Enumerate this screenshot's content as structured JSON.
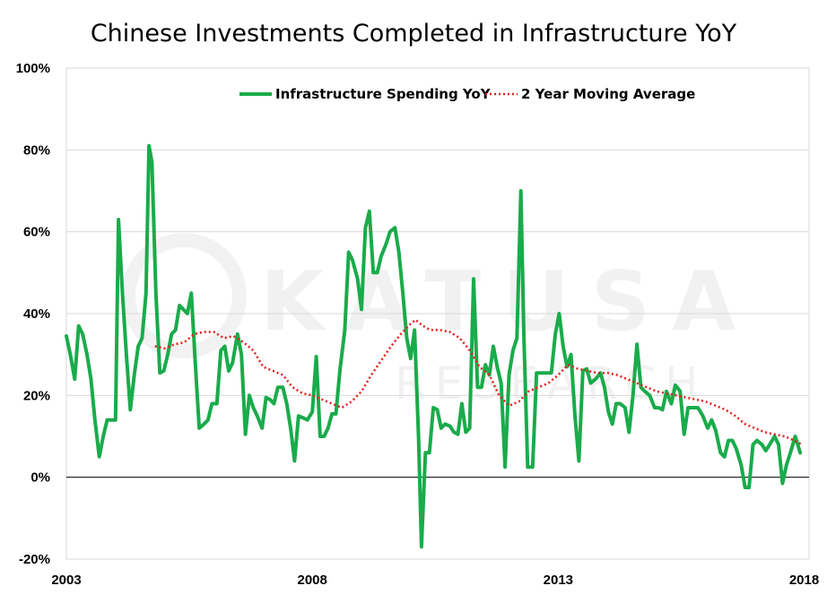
{
  "chart_data": {
    "type": "line",
    "title": "Chinese Investments Completed in Infrastructure YoY",
    "xlabel": "",
    "ylabel": "",
    "x_range": [
      2003.0,
      2018.1
    ],
    "ylim": [
      -20,
      100
    ],
    "y_ticks": [
      -20,
      0,
      20,
      40,
      60,
      80,
      100
    ],
    "y_tick_labels": [
      "-20%",
      "0%",
      "20%",
      "40%",
      "60%",
      "80%",
      "100%"
    ],
    "x_ticks": [
      2003,
      2008,
      2013,
      2018
    ],
    "x_tick_labels": [
      "2003",
      "2008",
      "2013",
      "2018"
    ],
    "grid": "horizontal",
    "legend_position": "top",
    "colors": {
      "spending": "#1aab4b",
      "moving_average": "#e0201b",
      "zero_line": "#000000"
    },
    "watermark": {
      "brand": "KATUSA",
      "sub": "RESEARCH"
    },
    "series": [
      {
        "name": "Infrastructure Spending YoY",
        "style": "solid",
        "points": [
          [
            2003.0,
            34.5
          ],
          [
            2003.08,
            30
          ],
          [
            2003.17,
            24
          ],
          [
            2003.25,
            37
          ],
          [
            2003.33,
            35
          ],
          [
            2003.42,
            30
          ],
          [
            2003.5,
            24
          ],
          [
            2003.58,
            14
          ],
          [
            2003.67,
            5
          ],
          [
            2003.75,
            10
          ],
          [
            2003.83,
            14
          ],
          [
            2003.92,
            14
          ],
          [
            2004.0,
            14
          ],
          [
            2004.06,
            63
          ],
          [
            2004.14,
            45
          ],
          [
            2004.22,
            30
          ],
          [
            2004.3,
            16.5
          ],
          [
            2004.38,
            25
          ],
          [
            2004.46,
            32
          ],
          [
            2004.54,
            34
          ],
          [
            2004.62,
            45
          ],
          [
            2004.68,
            81
          ],
          [
            2004.74,
            77
          ],
          [
            2004.82,
            45
          ],
          [
            2004.9,
            25.5
          ],
          [
            2004.98,
            26
          ],
          [
            2005.06,
            30
          ],
          [
            2005.14,
            35
          ],
          [
            2005.22,
            36
          ],
          [
            2005.3,
            42
          ],
          [
            2005.38,
            41
          ],
          [
            2005.46,
            40
          ],
          [
            2005.54,
            45
          ],
          [
            2005.62,
            28
          ],
          [
            2005.7,
            12
          ],
          [
            2005.8,
            13
          ],
          [
            2005.88,
            14
          ],
          [
            2005.96,
            18
          ],
          [
            2006.06,
            18
          ],
          [
            2006.14,
            31
          ],
          [
            2006.22,
            32
          ],
          [
            2006.3,
            26
          ],
          [
            2006.38,
            28
          ],
          [
            2006.48,
            35
          ],
          [
            2006.56,
            30
          ],
          [
            2006.64,
            10.5
          ],
          [
            2006.72,
            20
          ],
          [
            2006.8,
            17
          ],
          [
            2006.88,
            15
          ],
          [
            2006.98,
            12
          ],
          [
            2007.06,
            19.5
          ],
          [
            2007.14,
            19
          ],
          [
            2007.22,
            18
          ],
          [
            2007.3,
            22
          ],
          [
            2007.4,
            22
          ],
          [
            2007.48,
            18
          ],
          [
            2007.56,
            12
          ],
          [
            2007.64,
            4
          ],
          [
            2007.72,
            15
          ],
          [
            2007.82,
            14.5
          ],
          [
            2007.9,
            14
          ],
          [
            2008.0,
            16
          ],
          [
            2008.08,
            29.5
          ],
          [
            2008.16,
            10
          ],
          [
            2008.24,
            10
          ],
          [
            2008.32,
            12
          ],
          [
            2008.4,
            15.5
          ],
          [
            2008.48,
            15.5
          ],
          [
            2008.56,
            26
          ],
          [
            2008.66,
            36
          ],
          [
            2008.74,
            55
          ],
          [
            2008.82,
            53
          ],
          [
            2008.92,
            48.5
          ],
          [
            2009.0,
            41
          ],
          [
            2009.08,
            61
          ],
          [
            2009.16,
            65
          ],
          [
            2009.24,
            50
          ],
          [
            2009.32,
            50
          ],
          [
            2009.4,
            54
          ],
          [
            2009.5,
            57
          ],
          [
            2009.58,
            60
          ],
          [
            2009.68,
            61
          ],
          [
            2009.76,
            55
          ],
          [
            2009.84,
            45
          ],
          [
            2009.92,
            34
          ],
          [
            2010.0,
            29
          ],
          [
            2010.08,
            36
          ],
          [
            2010.16,
            10
          ],
          [
            2010.22,
            -17
          ],
          [
            2010.3,
            6
          ],
          [
            2010.38,
            6
          ],
          [
            2010.46,
            17
          ],
          [
            2010.54,
            16.5
          ],
          [
            2010.62,
            12
          ],
          [
            2010.7,
            13
          ],
          [
            2010.8,
            12.5
          ],
          [
            2010.88,
            11
          ],
          [
            2010.96,
            10.5
          ],
          [
            2011.04,
            18
          ],
          [
            2011.12,
            11
          ],
          [
            2011.2,
            12
          ],
          [
            2011.28,
            48.5
          ],
          [
            2011.36,
            22
          ],
          [
            2011.44,
            22
          ],
          [
            2011.52,
            27.5
          ],
          [
            2011.6,
            25
          ],
          [
            2011.68,
            32
          ],
          [
            2011.76,
            27
          ],
          [
            2011.84,
            23
          ],
          [
            2011.92,
            2.5
          ],
          [
            2012.0,
            25
          ],
          [
            2012.08,
            31
          ],
          [
            2012.16,
            34
          ],
          [
            2012.24,
            70
          ],
          [
            2012.3,
            35
          ],
          [
            2012.38,
            2.5
          ],
          [
            2012.48,
            2.5
          ],
          [
            2012.56,
            25.5
          ],
          [
            2012.66,
            25.5
          ],
          [
            2012.76,
            25.5
          ],
          [
            2012.86,
            25.5
          ],
          [
            2012.94,
            35
          ],
          [
            2013.02,
            40
          ],
          [
            2013.1,
            32
          ],
          [
            2013.18,
            27
          ],
          [
            2013.26,
            30
          ],
          [
            2013.34,
            15
          ],
          [
            2013.42,
            4
          ],
          [
            2013.5,
            26
          ],
          [
            2013.58,
            26.5
          ],
          [
            2013.66,
            23
          ],
          [
            2013.76,
            24
          ],
          [
            2013.86,
            25.5
          ],
          [
            2013.94,
            22
          ],
          [
            2014.02,
            16
          ],
          [
            2014.1,
            13
          ],
          [
            2014.18,
            18
          ],
          [
            2014.26,
            18
          ],
          [
            2014.36,
            17
          ],
          [
            2014.44,
            11
          ],
          [
            2014.52,
            20
          ],
          [
            2014.6,
            32.5
          ],
          [
            2014.68,
            22
          ],
          [
            2014.76,
            21
          ],
          [
            2014.86,
            20
          ],
          [
            2014.96,
            17
          ],
          [
            2015.04,
            17
          ],
          [
            2015.12,
            16.5
          ],
          [
            2015.2,
            21
          ],
          [
            2015.3,
            18
          ],
          [
            2015.38,
            22.5
          ],
          [
            2015.48,
            21
          ],
          [
            2015.56,
            10.5
          ],
          [
            2015.64,
            17
          ],
          [
            2015.74,
            17
          ],
          [
            2015.84,
            17
          ],
          [
            2015.94,
            15
          ],
          [
            2016.04,
            12
          ],
          [
            2016.12,
            14
          ],
          [
            2016.2,
            11.5
          ],
          [
            2016.3,
            6
          ],
          [
            2016.38,
            5
          ],
          [
            2016.46,
            9
          ],
          [
            2016.54,
            9
          ],
          [
            2016.62,
            7
          ],
          [
            2016.72,
            3
          ],
          [
            2016.8,
            -2.5
          ],
          [
            2016.88,
            -2.5
          ],
          [
            2016.96,
            8
          ],
          [
            2017.04,
            9
          ],
          [
            2017.14,
            8
          ],
          [
            2017.22,
            6.5
          ],
          [
            2017.3,
            8
          ],
          [
            2017.4,
            10
          ],
          [
            2017.48,
            8
          ],
          [
            2017.56,
            -1.5
          ],
          [
            2017.64,
            3
          ],
          [
            2017.72,
            6
          ],
          [
            2017.82,
            10
          ],
          [
            2017.92,
            6
          ]
        ]
      },
      {
        "name": "2 Year Moving Average",
        "style": "dotted",
        "points": [
          [
            2004.8,
            32
          ],
          [
            2005.0,
            31.5
          ],
          [
            2005.2,
            32.5
          ],
          [
            2005.4,
            33
          ],
          [
            2005.6,
            35
          ],
          [
            2005.8,
            35.5
          ],
          [
            2006.0,
            35.5
          ],
          [
            2006.2,
            34
          ],
          [
            2006.4,
            34.5
          ],
          [
            2006.6,
            33
          ],
          [
            2006.8,
            31
          ],
          [
            2007.0,
            27
          ],
          [
            2007.2,
            26
          ],
          [
            2007.4,
            25
          ],
          [
            2007.6,
            22
          ],
          [
            2007.8,
            20.5
          ],
          [
            2008.0,
            20
          ],
          [
            2008.2,
            19
          ],
          [
            2008.4,
            18
          ],
          [
            2008.6,
            17
          ],
          [
            2008.8,
            18.5
          ],
          [
            2009.0,
            21
          ],
          [
            2009.2,
            25
          ],
          [
            2009.4,
            28.5
          ],
          [
            2009.6,
            32
          ],
          [
            2009.8,
            35
          ],
          [
            2010.0,
            37.5
          ],
          [
            2010.1,
            38.5
          ],
          [
            2010.25,
            37
          ],
          [
            2010.4,
            36
          ],
          [
            2010.6,
            36
          ],
          [
            2010.8,
            35.5
          ],
          [
            2011.0,
            34
          ],
          [
            2011.2,
            31
          ],
          [
            2011.4,
            27
          ],
          [
            2011.6,
            25
          ],
          [
            2011.8,
            20
          ],
          [
            2012.0,
            17.5
          ],
          [
            2012.2,
            18.5
          ],
          [
            2012.4,
            21
          ],
          [
            2012.6,
            22
          ],
          [
            2012.8,
            23
          ],
          [
            2013.0,
            25
          ],
          [
            2013.2,
            27.5
          ],
          [
            2013.4,
            26.5
          ],
          [
            2013.6,
            26
          ],
          [
            2013.8,
            25.5
          ],
          [
            2014.0,
            25.5
          ],
          [
            2014.2,
            25
          ],
          [
            2014.4,
            24
          ],
          [
            2014.6,
            23
          ],
          [
            2014.8,
            22
          ],
          [
            2015.0,
            21
          ],
          [
            2015.2,
            20.5
          ],
          [
            2015.4,
            20
          ],
          [
            2015.6,
            19.5
          ],
          [
            2015.8,
            19
          ],
          [
            2016.0,
            18.5
          ],
          [
            2016.2,
            17.5
          ],
          [
            2016.4,
            16.5
          ],
          [
            2016.6,
            15
          ],
          [
            2016.8,
            13
          ],
          [
            2017.0,
            12
          ],
          [
            2017.2,
            11
          ],
          [
            2017.4,
            10.5
          ],
          [
            2017.6,
            10
          ],
          [
            2017.8,
            9
          ],
          [
            2017.95,
            8
          ]
        ]
      }
    ]
  }
}
